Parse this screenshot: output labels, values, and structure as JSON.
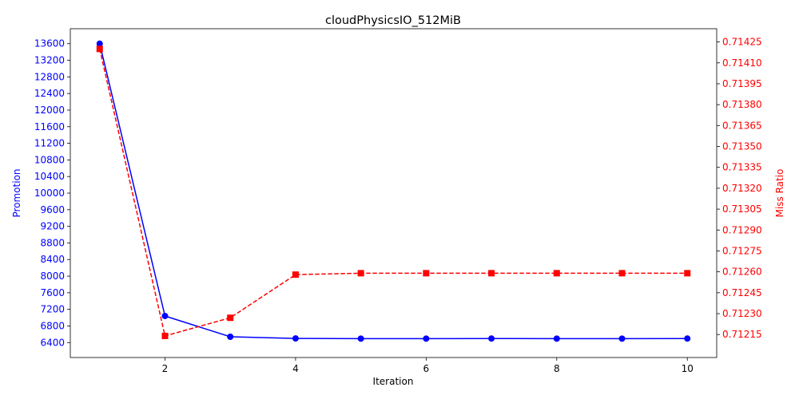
{
  "chart_data": {
    "type": "line",
    "title": "cloudPhysicsIO_512MiB",
    "xlabel": "Iteration",
    "ylabel_left": "Promotion",
    "ylabel_right": "Miss Ratio",
    "x": [
      1,
      2,
      3,
      4,
      5,
      6,
      7,
      8,
      9,
      10
    ],
    "xlim": [
      0.55,
      10.45
    ],
    "xticks": [
      2,
      4,
      6,
      8,
      10
    ],
    "ylim_left": [
      6040,
      13960
    ],
    "yticks_left": [
      6400,
      6800,
      7200,
      7600,
      8000,
      8400,
      8800,
      9200,
      9600,
      10000,
      10400,
      10800,
      11200,
      11600,
      12000,
      12400,
      12800,
      13200,
      13600
    ],
    "ylim_right": [
      0.711985,
      0.714345
    ],
    "yticks_right": [
      "0.71215",
      "0.71230",
      "0.71245",
      "0.71260",
      "0.71275",
      "0.71290",
      "0.71305",
      "0.71320",
      "0.71335",
      "0.71350",
      "0.71365",
      "0.71380",
      "0.71395",
      "0.71410",
      "0.71425"
    ],
    "series": [
      {
        "axis": "left",
        "values": [
          13600,
          7040,
          6540,
          6500,
          6495,
          6495,
          6497,
          6495,
          6495,
          6497
        ],
        "color": "#0000ff",
        "line_style": "solid",
        "marker": "circle"
      },
      {
        "axis": "right",
        "values": [
          0.7142,
          0.71214,
          0.71227,
          0.71258,
          0.71259,
          0.71259,
          0.71259,
          0.71259,
          0.71259,
          0.71259
        ],
        "color": "#ff0000",
        "line_style": "dashed",
        "marker": "square"
      }
    ]
  }
}
